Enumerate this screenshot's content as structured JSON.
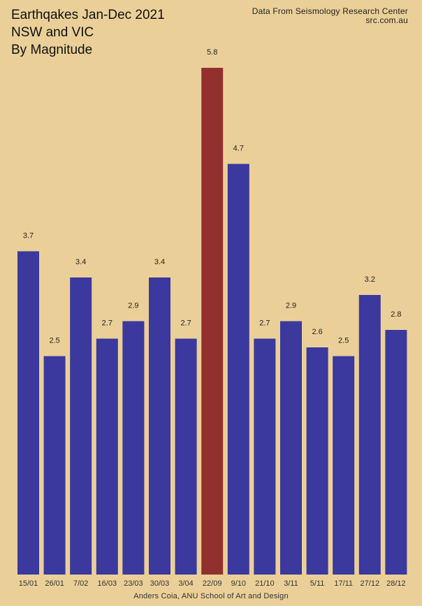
{
  "header": {
    "title_line1": "Earthqakes Jan-Dec 2021",
    "title_line2": "NSW and VIC",
    "title_line3": "By Magnitude",
    "source_line1": "Data From Seismology Research Center",
    "source_line2": "src.com.au"
  },
  "footer": {
    "credit": "Anders Coia, ANU School of Art and Design"
  },
  "colors": {
    "background": "#EAD098",
    "bar": "#3B389E",
    "highlight": "#92302F"
  },
  "chart_data": {
    "type": "bar",
    "title": "Earthqakes Jan-Dec 2021",
    "subtitle": "NSW and VIC By Magnitude",
    "xlabel": "",
    "ylabel": "",
    "ylim": [
      0,
      5.8
    ],
    "grid": false,
    "categories": [
      "15/01",
      "26/01",
      "7/02",
      "16/03",
      "23/03",
      "30/03",
      "3/04",
      "22/09",
      "9/10",
      "21/10",
      "3/11",
      "5/11",
      "17/11",
      "27/12",
      "28/12"
    ],
    "values": [
      3.7,
      2.5,
      3.4,
      2.7,
      2.9,
      3.4,
      2.7,
      5.8,
      4.7,
      2.7,
      2.9,
      2.6,
      2.5,
      3.2,
      2.8
    ],
    "data_labels": [
      "3.7",
      "2.5",
      "3.4",
      "2.7",
      "2.9",
      "3.4",
      "2.7",
      "5.8",
      "4.7",
      "2.7",
      "2.9",
      "2.6",
      "2.5",
      "3.2",
      "2.8"
    ],
    "highlight_category": "22/09"
  }
}
